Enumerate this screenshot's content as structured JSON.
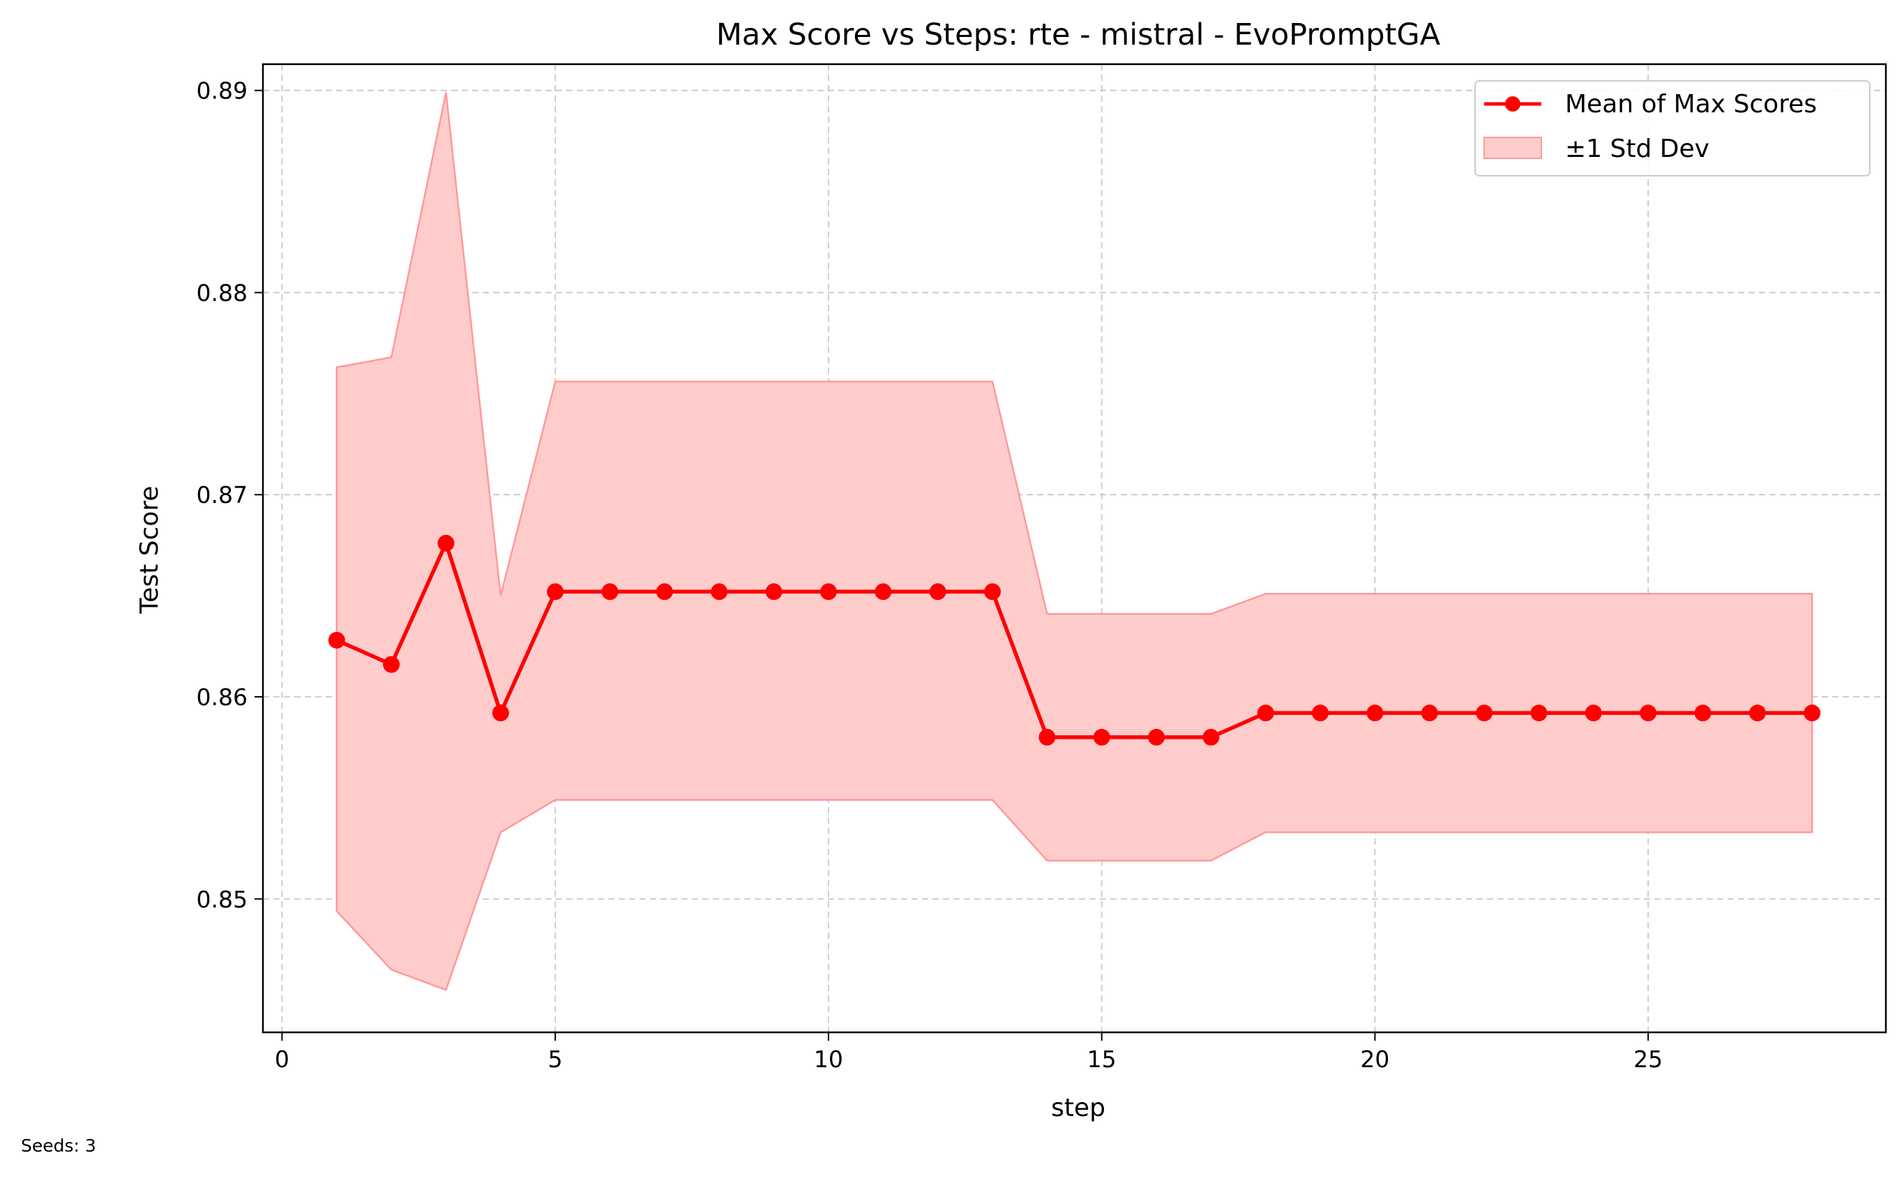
{
  "chart_data": {
    "type": "line",
    "title": "Max Score vs Steps: rte - mistral - EvoPromptGA",
    "xlabel": "step",
    "ylabel": "Test Score",
    "xlim": [
      -0.35,
      29.35
    ],
    "ylim": [
      0.8434,
      0.8913
    ],
    "xticks": [
      0,
      5,
      10,
      15,
      20,
      25
    ],
    "xtick_labels": [
      "0",
      "5",
      "10",
      "15",
      "20",
      "25"
    ],
    "yticks": [
      0.85,
      0.86,
      0.87,
      0.88,
      0.89
    ],
    "ytick_labels": [
      "0.85",
      "0.86",
      "0.87",
      "0.88",
      "0.89"
    ],
    "grid": true,
    "legend_position": "top-right",
    "x": [
      1,
      2,
      3,
      4,
      5,
      6,
      7,
      8,
      9,
      10,
      11,
      12,
      13,
      14,
      15,
      16,
      17,
      18,
      19,
      20,
      21,
      22,
      23,
      24,
      25,
      26,
      27,
      28
    ],
    "series": [
      {
        "name": "Mean of Max Scores",
        "color": "#ff0000",
        "values": [
          0.8628,
          0.8616,
          0.8676,
          0.8592,
          0.8652,
          0.8652,
          0.8652,
          0.8652,
          0.8652,
          0.8652,
          0.8652,
          0.8652,
          0.8652,
          0.858,
          0.858,
          0.858,
          0.858,
          0.8592,
          0.8592,
          0.8592,
          0.8592,
          0.8592,
          0.8592,
          0.8592,
          0.8592,
          0.8592,
          0.8592,
          0.8592
        ]
      }
    ],
    "band": {
      "name": "±1 Std Dev",
      "color": "#ffcccc",
      "edge_color": "#ff9999",
      "upper": [
        0.8763,
        0.8768,
        0.8899,
        0.865,
        0.8756,
        0.8756,
        0.8756,
        0.8756,
        0.8756,
        0.8756,
        0.8756,
        0.8756,
        0.8756,
        0.8641,
        0.8641,
        0.8641,
        0.8641,
        0.8651,
        0.8651,
        0.8651,
        0.8651,
        0.8651,
        0.8651,
        0.8651,
        0.8651,
        0.8651,
        0.8651,
        0.8651
      ],
      "lower": [
        0.8494,
        0.8465,
        0.8455,
        0.8533,
        0.8549,
        0.8549,
        0.8549,
        0.8549,
        0.8549,
        0.8549,
        0.8549,
        0.8549,
        0.8549,
        0.8519,
        0.8519,
        0.8519,
        0.8519,
        0.8533,
        0.8533,
        0.8533,
        0.8533,
        0.8533,
        0.8533,
        0.8533,
        0.8533,
        0.8533,
        0.8533,
        0.8533
      ]
    }
  },
  "footnote": "Seeds: 3"
}
